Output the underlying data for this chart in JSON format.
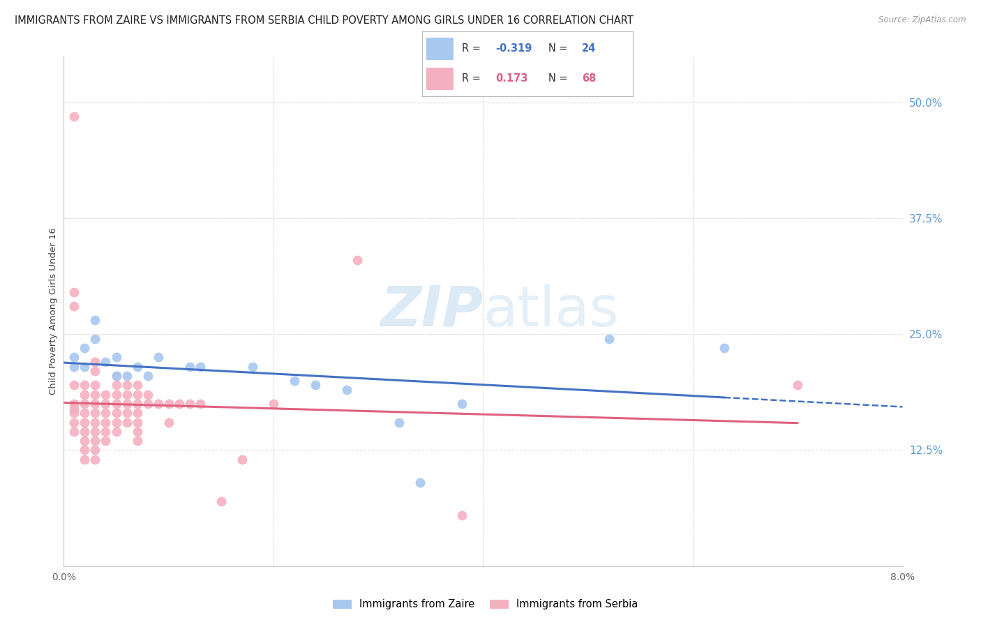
{
  "title": "IMMIGRANTS FROM ZAIRE VS IMMIGRANTS FROM SERBIA CHILD POVERTY AMONG GIRLS UNDER 16 CORRELATION CHART",
  "source": "Source: ZipAtlas.com",
  "ylabel": "Child Poverty Among Girls Under 16",
  "xlim": [
    0.0,
    0.08
  ],
  "ylim": [
    0.0,
    0.55
  ],
  "xtick_positions": [
    0.0,
    0.02,
    0.04,
    0.06,
    0.08
  ],
  "xticklabels": [
    "0.0%",
    "",
    "",
    "",
    "8.0%"
  ],
  "yticks_right": [
    0.125,
    0.25,
    0.375,
    0.5
  ],
  "yticks_right_labels": [
    "12.5%",
    "25.0%",
    "37.5%",
    "50.0%"
  ],
  "color_zaire": "#A8C8F0",
  "color_serbia": "#F5B0C0",
  "color_zaire_line": "#4472C4",
  "color_serbia_line": "#E06080",
  "watermark_color": "#D5E8F5",
  "grid_color": "#DDDDDD",
  "background_color": "#FFFFFF",
  "title_fontsize": 10.5,
  "axis_label_fontsize": 9.5,
  "tick_fontsize": 10,
  "right_label_color": "#5B9BD5",
  "zaire_x": [
    0.001,
    0.001,
    0.002,
    0.002,
    0.003,
    0.003,
    0.004,
    0.005,
    0.005,
    0.006,
    0.007,
    0.008,
    0.009,
    0.012,
    0.013,
    0.018,
    0.022,
    0.024,
    0.027,
    0.032,
    0.034,
    0.038,
    0.052,
    0.063
  ],
  "zaire_y": [
    0.215,
    0.225,
    0.235,
    0.215,
    0.245,
    0.265,
    0.22,
    0.225,
    0.205,
    0.205,
    0.215,
    0.205,
    0.225,
    0.215,
    0.215,
    0.215,
    0.2,
    0.195,
    0.19,
    0.155,
    0.09,
    0.175,
    0.245,
    0.235
  ],
  "serbia_x": [
    0.001,
    0.001,
    0.001,
    0.001,
    0.001,
    0.001,
    0.001,
    0.001,
    0.001,
    0.002,
    0.002,
    0.002,
    0.002,
    0.002,
    0.002,
    0.002,
    0.002,
    0.002,
    0.003,
    0.003,
    0.003,
    0.003,
    0.003,
    0.003,
    0.003,
    0.003,
    0.003,
    0.003,
    0.003,
    0.004,
    0.004,
    0.004,
    0.004,
    0.004,
    0.004,
    0.005,
    0.005,
    0.005,
    0.005,
    0.005,
    0.005,
    0.005,
    0.006,
    0.006,
    0.006,
    0.006,
    0.006,
    0.007,
    0.007,
    0.007,
    0.007,
    0.007,
    0.007,
    0.007,
    0.008,
    0.008,
    0.009,
    0.01,
    0.01,
    0.011,
    0.012,
    0.013,
    0.015,
    0.017,
    0.02,
    0.028,
    0.038,
    0.07
  ],
  "serbia_y": [
    0.485,
    0.295,
    0.28,
    0.195,
    0.175,
    0.17,
    0.165,
    0.155,
    0.145,
    0.195,
    0.185,
    0.175,
    0.165,
    0.155,
    0.145,
    0.135,
    0.125,
    0.115,
    0.22,
    0.21,
    0.195,
    0.185,
    0.175,
    0.165,
    0.155,
    0.145,
    0.135,
    0.125,
    0.115,
    0.185,
    0.175,
    0.165,
    0.155,
    0.145,
    0.135,
    0.205,
    0.195,
    0.185,
    0.175,
    0.165,
    0.155,
    0.145,
    0.195,
    0.185,
    0.175,
    0.165,
    0.155,
    0.195,
    0.185,
    0.175,
    0.165,
    0.155,
    0.145,
    0.135,
    0.185,
    0.175,
    0.175,
    0.175,
    0.155,
    0.175,
    0.175,
    0.175,
    0.07,
    0.115,
    0.175,
    0.33,
    0.055,
    0.195
  ]
}
